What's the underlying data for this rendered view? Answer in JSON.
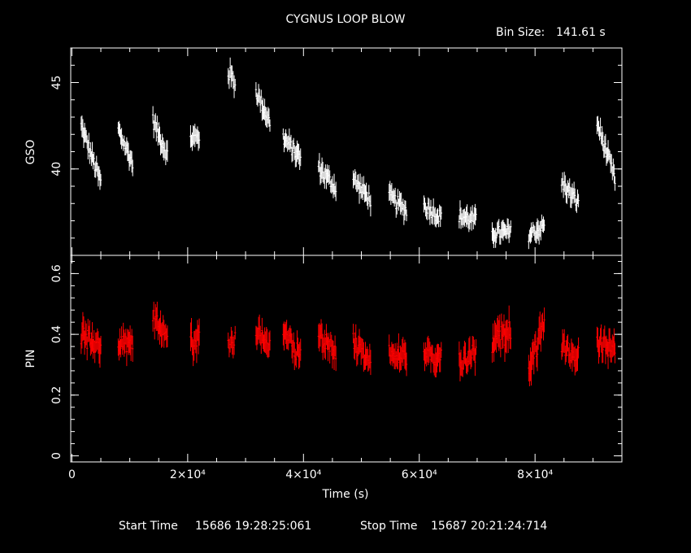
{
  "title": "CYGNUS LOOP BLOW",
  "bin_size_label": "Bin Size:",
  "bin_size_value": "141.61 s",
  "start_label": "Start Time",
  "start_value": "15686 19:28:25:061",
  "stop_label": "Stop Time",
  "stop_value": "15687 20:21:24:714",
  "colors": {
    "background": "#000000",
    "axes": "#ffffff",
    "gso": "#ffffff",
    "pin": "#ff0000"
  },
  "chart_data": [
    {
      "type": "scatter",
      "name": "gso-panel",
      "ylabel": "GSO",
      "xlabel": "",
      "xlim": [
        -200,
        95000
      ],
      "ylim": [
        35,
        47
      ],
      "yticks": [
        40,
        45
      ],
      "ytick_labels": [
        "40",
        "45"
      ],
      "error_bars": true,
      "segments": [
        {
          "x": [
            1600,
            5000
          ],
          "y": [
            42.5,
            39.2
          ],
          "err": 0.9
        },
        {
          "x": [
            8000,
            10500
          ],
          "y": [
            42.3,
            40.3
          ],
          "err": 0.9
        },
        {
          "x": [
            14000,
            16500
          ],
          "y": [
            42.8,
            40.8
          ],
          "err": 0.9
        },
        {
          "x": [
            20500,
            22000
          ],
          "y": [
            41.8,
            41.8
          ],
          "err": 1.0
        },
        {
          "x": [
            27000,
            28200
          ],
          "y": [
            45.6,
            45.0
          ],
          "err": 1.0
        },
        {
          "x": [
            31800,
            34200
          ],
          "y": [
            44.5,
            42.7
          ],
          "err": 0.9
        },
        {
          "x": [
            36500,
            39500
          ],
          "y": [
            41.8,
            40.6
          ],
          "err": 0.9
        },
        {
          "x": [
            42600,
            45600
          ],
          "y": [
            40.1,
            38.9
          ],
          "err": 0.9
        },
        {
          "x": [
            48600,
            51600
          ],
          "y": [
            39.4,
            38.2
          ],
          "err": 0.9
        },
        {
          "x": [
            54800,
            57800
          ],
          "y": [
            38.4,
            37.6
          ],
          "err": 0.9
        },
        {
          "x": [
            60800,
            63800
          ],
          "y": [
            37.9,
            37.2
          ],
          "err": 0.9
        },
        {
          "x": [
            66900,
            69800
          ],
          "y": [
            37.3,
            37.0
          ],
          "err": 0.9
        },
        {
          "x": [
            72600,
            75800
          ],
          "y": [
            36.3,
            36.3
          ],
          "err": 0.9
        },
        {
          "x": [
            78900,
            81600
          ],
          "y": [
            36.2,
            36.7
          ],
          "err": 0.9
        },
        {
          "x": [
            84600,
            87500
          ],
          "y": [
            39.2,
            38.0
          ],
          "err": 0.9
        },
        {
          "x": [
            90700,
            93800
          ],
          "y": [
            42.7,
            39.4
          ],
          "err": 0.9
        }
      ]
    },
    {
      "type": "scatter",
      "name": "pin-panel",
      "ylabel": "PIN",
      "xlabel": "Time (s)",
      "xlim": [
        -200,
        95000
      ],
      "ylim": [
        -0.02,
        0.66
      ],
      "yticks": [
        0,
        0.2,
        0.4,
        0.6
      ],
      "ytick_labels": [
        "0",
        "0.2",
        "0.4",
        "0.6"
      ],
      "xticks": [
        0,
        20000,
        40000,
        60000,
        80000
      ],
      "xtick_labels": [
        "0",
        "2×10⁴",
        "4×10⁴",
        "6×10⁴",
        "8×10⁴"
      ],
      "error_bars": true,
      "segments": [
        {
          "x": [
            1600,
            5000
          ],
          "y": [
            0.4,
            0.35
          ],
          "err": 0.07
        },
        {
          "x": [
            8000,
            10500
          ],
          "y": [
            0.36,
            0.38
          ],
          "err": 0.07
        },
        {
          "x": [
            14000,
            16500
          ],
          "y": [
            0.45,
            0.4
          ],
          "err": 0.07
        },
        {
          "x": [
            20500,
            22000
          ],
          "y": [
            0.37,
            0.38
          ],
          "err": 0.08
        },
        {
          "x": [
            27000,
            28200
          ],
          "y": [
            0.38,
            0.38
          ],
          "err": 0.06
        },
        {
          "x": [
            31800,
            34200
          ],
          "y": [
            0.42,
            0.36
          ],
          "err": 0.07
        },
        {
          "x": [
            36500,
            39500
          ],
          "y": [
            0.4,
            0.33
          ],
          "err": 0.07
        },
        {
          "x": [
            42600,
            45600
          ],
          "y": [
            0.4,
            0.34
          ],
          "err": 0.07
        },
        {
          "x": [
            48600,
            51600
          ],
          "y": [
            0.38,
            0.3
          ],
          "err": 0.07
        },
        {
          "x": [
            54800,
            57800
          ],
          "y": [
            0.36,
            0.32
          ],
          "err": 0.07
        },
        {
          "x": [
            60800,
            63800
          ],
          "y": [
            0.33,
            0.32
          ],
          "err": 0.07
        },
        {
          "x": [
            66900,
            69800
          ],
          "y": [
            0.31,
            0.34
          ],
          "err": 0.07
        },
        {
          "x": [
            72600,
            75800
          ],
          "y": [
            0.36,
            0.42
          ],
          "err": 0.08
        },
        {
          "x": [
            78900,
            81600
          ],
          "y": [
            0.3,
            0.42
          ],
          "err": 0.08
        },
        {
          "x": [
            84600,
            87500
          ],
          "y": [
            0.36,
            0.33
          ],
          "err": 0.07
        },
        {
          "x": [
            90700,
            93800
          ],
          "y": [
            0.37,
            0.35
          ],
          "err": 0.07
        }
      ]
    }
  ]
}
